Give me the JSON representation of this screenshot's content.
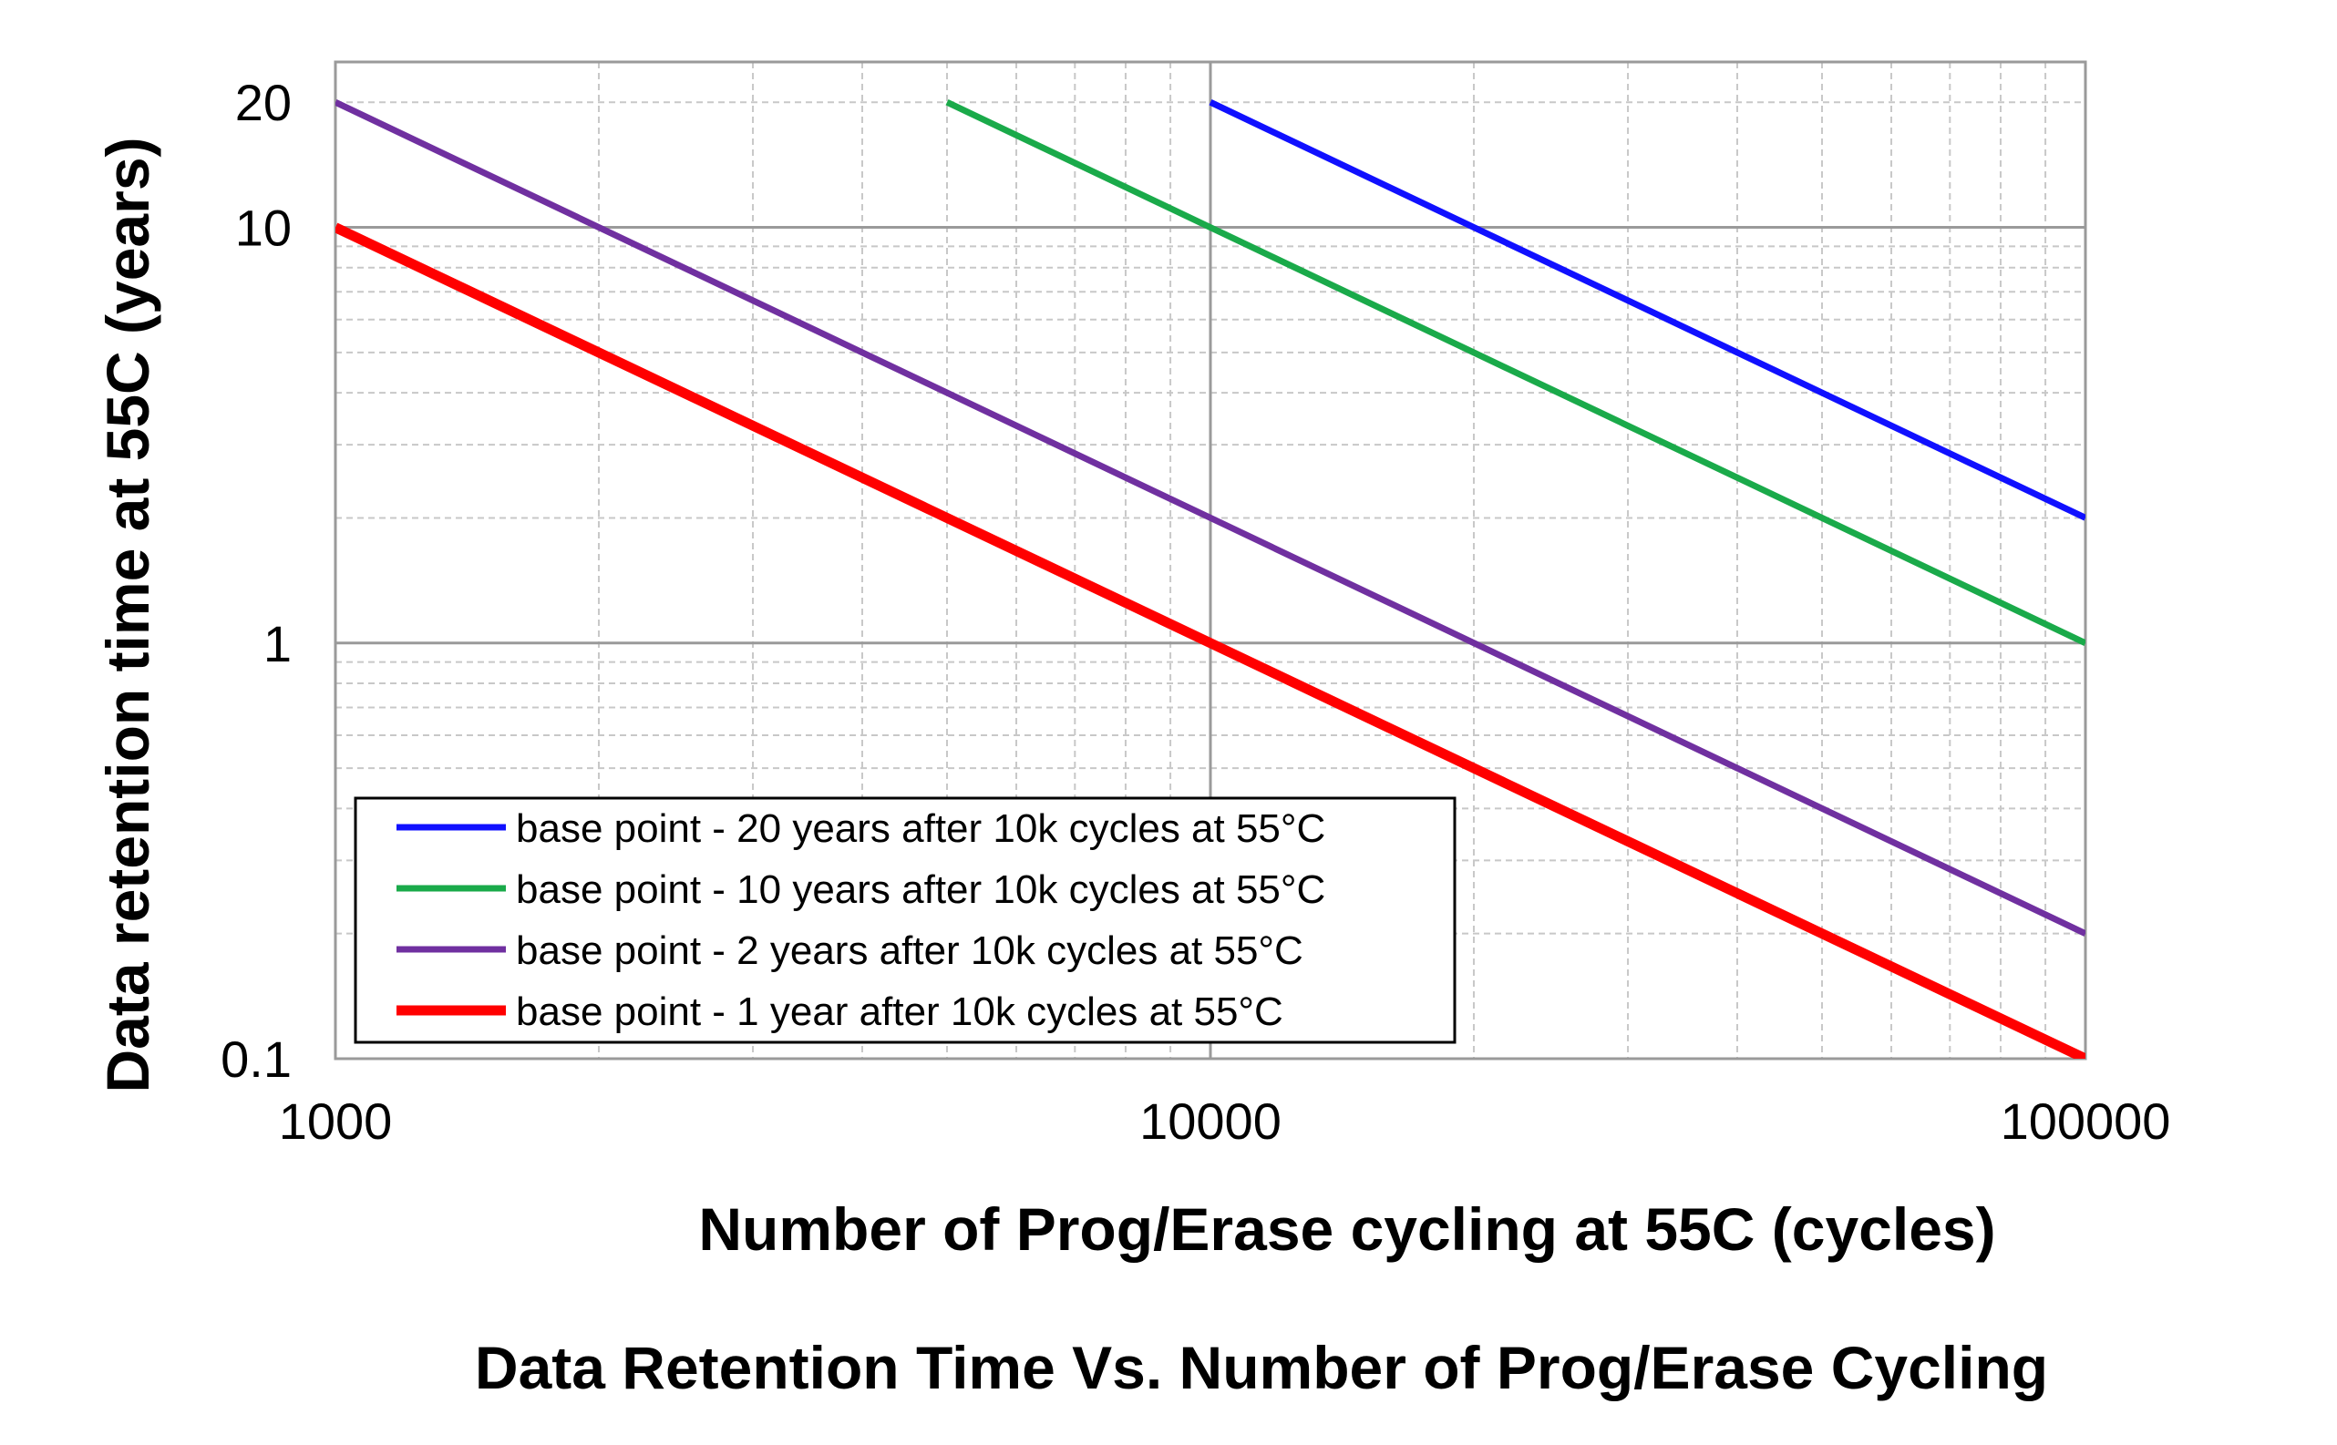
{
  "chart_data": {
    "type": "line",
    "title": "Data Retention Time Vs. Number of Prog/Erase Cycling",
    "xlabel": "Number of Prog/Erase cycling at 55C (cycles)",
    "ylabel": "Data retention time at 55C (years)",
    "x_scale": "log",
    "y_scale": "log",
    "xlim": [
      1000,
      100000
    ],
    "ylim": [
      0.1,
      25
    ],
    "x_ticks": [
      1000,
      10000,
      100000
    ],
    "x_tick_labels": [
      "1000",
      "10000",
      "100000"
    ],
    "y_ticks": [
      0.1,
      1,
      10,
      20
    ],
    "y_tick_labels": [
      "0.1",
      "1",
      "10",
      "20"
    ],
    "grid": true,
    "legend_position": "bottom-left",
    "series": [
      {
        "name": "base point - 20 years after 10k cycles at 55°C",
        "color": "#1010ff",
        "x": [
          10000,
          100000
        ],
        "y": [
          20,
          2
        ]
      },
      {
        "name": "base point - 10 years after 10k cycles at 55°C",
        "color": "#1aaa4a",
        "x": [
          5000,
          10000,
          100000
        ],
        "y": [
          20,
          10,
          1
        ]
      },
      {
        "name": "base point - 2 years after 10k cycles at 55°C",
        "color": "#7030a0",
        "x": [
          1000,
          10000,
          100000
        ],
        "y": [
          20,
          2,
          0.2
        ]
      },
      {
        "name": "base point - 1 year after 10k cycles at 55°C",
        "color": "#ff0000",
        "x": [
          1000,
          10000,
          100000
        ],
        "y": [
          10,
          1,
          0.1
        ]
      }
    ]
  }
}
